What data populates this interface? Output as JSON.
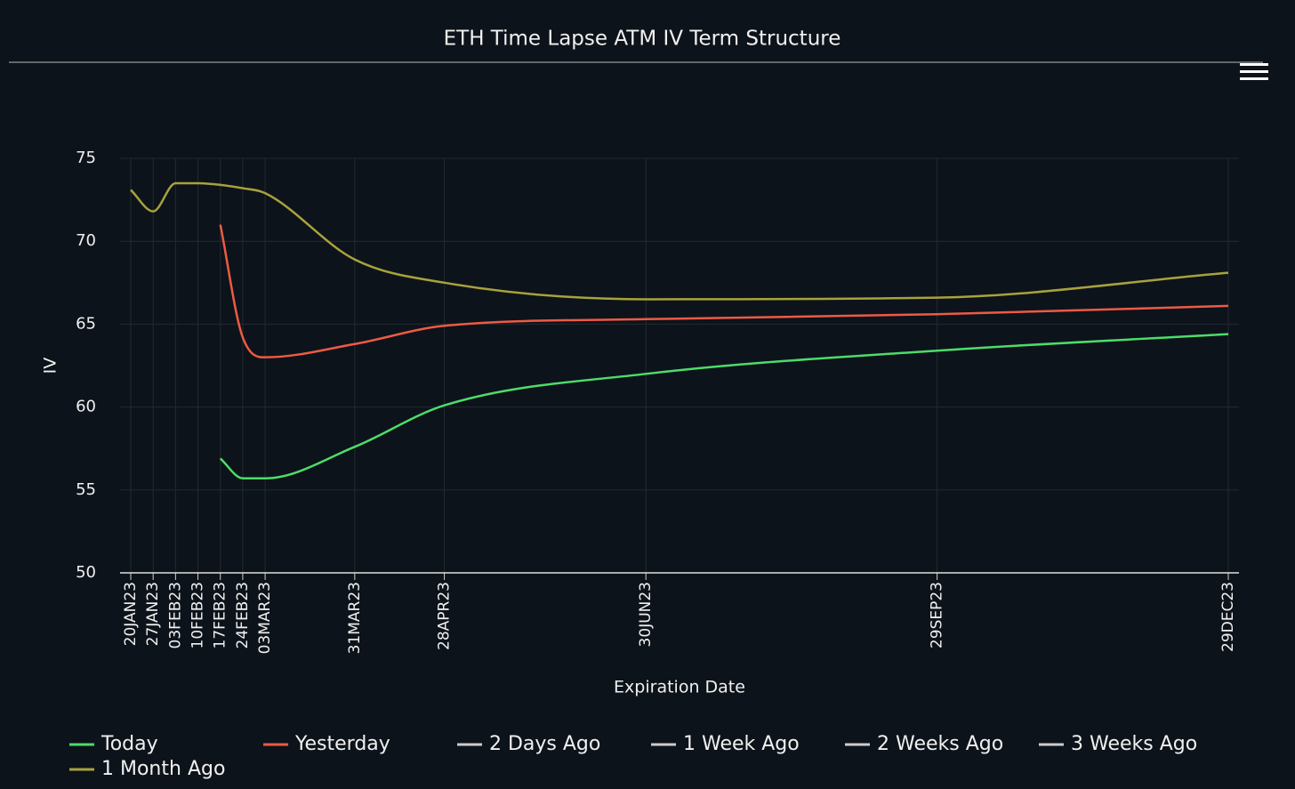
{
  "chart_data": {
    "type": "line",
    "title": "ETH Time Lapse ATM IV Term Structure",
    "x_label": "Expiration Date",
    "y_label": "IV",
    "x": [
      "20JAN23",
      "27JAN23",
      "03FEB23",
      "10FEB23",
      "17FEB23",
      "24FEB23",
      "03MAR23",
      "31MAR23",
      "28APR23",
      "30JUN23",
      "29SEP23",
      "29DEC23"
    ],
    "xlim": [
      "20JAN23",
      "29DEC23"
    ],
    "ylim": [
      50,
      75
    ],
    "yticks": [
      50,
      55,
      60,
      65,
      70,
      75
    ],
    "grid": true,
    "legend": "bottom",
    "series": [
      {
        "name": "Today",
        "color": "#4cdc6a",
        "values": [
          null,
          null,
          null,
          null,
          56.9,
          55.7,
          55.7,
          57.6,
          60.1,
          62.0,
          63.4,
          64.4
        ]
      },
      {
        "name": "Yesterday",
        "color": "#ee5a45",
        "values": [
          null,
          null,
          null,
          null,
          71.0,
          64.2,
          63.0,
          63.8,
          64.9,
          65.3,
          65.6,
          66.1
        ]
      },
      {
        "name": "2 Days Ago",
        "color": "#cccccc",
        "values": [
          null,
          null,
          null,
          null,
          null,
          null,
          null,
          null,
          null,
          null,
          null,
          null
        ]
      },
      {
        "name": "1 Week Ago",
        "color": "#cccccc",
        "values": [
          null,
          null,
          null,
          null,
          null,
          null,
          null,
          null,
          null,
          null,
          null,
          null
        ]
      },
      {
        "name": "2 Weeks Ago",
        "color": "#cccccc",
        "values": [
          null,
          null,
          null,
          null,
          null,
          null,
          null,
          null,
          null,
          null,
          null,
          null
        ]
      },
      {
        "name": "3 Weeks Ago",
        "color": "#cccccc",
        "values": [
          null,
          null,
          null,
          null,
          null,
          null,
          null,
          null,
          null,
          null,
          null,
          null
        ]
      },
      {
        "name": "1 Month Ago",
        "color": "#a8a23c",
        "values": [
          73.1,
          71.8,
          73.5,
          73.5,
          73.4,
          73.2,
          72.9,
          68.9,
          67.5,
          66.5,
          66.6,
          68.1
        ]
      }
    ]
  }
}
